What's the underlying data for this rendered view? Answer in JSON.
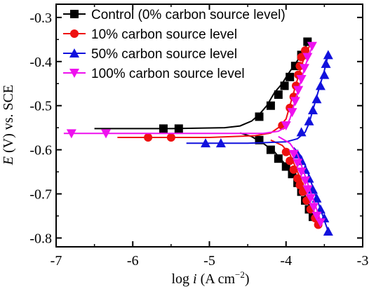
{
  "chart_data": {
    "type": "line",
    "xlabel": {
      "base": "log ",
      "italic": "i",
      "unit": " (A cm",
      "sup": "−2",
      "close": ")"
    },
    "ylabel": {
      "italic": "E",
      "rest": " (V) vs. SCE"
    },
    "xlim": [
      -7,
      -3
    ],
    "ylim": [
      -0.82,
      -0.27
    ],
    "xticks": [
      -7,
      -6,
      -5,
      -4,
      -3
    ],
    "xtick_labels": [
      "-7",
      "-6",
      "-5",
      "-4",
      "-3"
    ],
    "yticks": [
      -0.8,
      -0.7,
      -0.6,
      -0.5,
      -0.4,
      -0.3
    ],
    "ytick_labels": [
      "-0.8",
      "-0.7",
      "-0.6",
      "-0.5",
      "-0.4",
      "-0.3"
    ],
    "legend_position": "top-right",
    "series": [
      {
        "name": "Control (0% carbon source level)",
        "color": "#000000",
        "marker": "square",
        "line": [
          [
            -6.5,
            -0.552
          ],
          [
            -5.5,
            -0.552
          ],
          [
            -4.8,
            -0.55
          ],
          [
            -4.6,
            -0.546
          ],
          [
            -4.45,
            -0.535
          ],
          [
            -4.35,
            -0.52
          ],
          [
            -4.25,
            -0.5
          ],
          [
            -4.15,
            -0.47
          ],
          [
            -4.05,
            -0.45
          ],
          [
            -3.98,
            -0.43
          ],
          [
            -3.9,
            -0.41
          ],
          [
            -3.8,
            -0.385
          ],
          [
            -3.7,
            -0.352
          ],
          [
            null,
            null
          ],
          [
            -4.6,
            -0.562
          ],
          [
            -4.45,
            -0.57
          ],
          [
            -4.3,
            -0.585
          ],
          [
            -4.15,
            -0.605
          ],
          [
            -4.05,
            -0.625
          ],
          [
            -3.95,
            -0.645
          ],
          [
            -3.85,
            -0.665
          ],
          [
            -3.8,
            -0.685
          ],
          [
            -3.75,
            -0.705
          ],
          [
            -3.7,
            -0.725
          ],
          [
            -3.65,
            -0.745
          ],
          [
            -3.6,
            -0.765
          ]
        ],
        "points": [
          [
            -5.6,
            -0.552
          ],
          [
            -5.4,
            -0.552
          ],
          [
            -4.35,
            -0.525
          ],
          [
            -4.2,
            -0.5
          ],
          [
            -4.1,
            -0.475
          ],
          [
            -4.02,
            -0.455
          ],
          [
            -3.95,
            -0.435
          ],
          [
            -3.88,
            -0.41
          ],
          [
            -3.8,
            -0.385
          ],
          [
            -3.72,
            -0.355
          ],
          [
            -4.35,
            -0.578
          ],
          [
            -4.2,
            -0.6
          ],
          [
            -4.1,
            -0.62
          ],
          [
            -4.0,
            -0.638
          ],
          [
            -3.92,
            -0.655
          ],
          [
            -3.85,
            -0.675
          ],
          [
            -3.8,
            -0.695
          ],
          [
            -3.75,
            -0.715
          ],
          [
            -3.7,
            -0.735
          ],
          [
            -3.65,
            -0.752
          ]
        ]
      },
      {
        "name": "10% carbon source level",
        "color": "#ee1111",
        "marker": "circle",
        "line": [
          [
            -6.2,
            -0.572
          ],
          [
            -5.0,
            -0.572
          ],
          [
            -4.4,
            -0.568
          ],
          [
            -4.2,
            -0.562
          ],
          [
            -4.1,
            -0.55
          ],
          [
            -4.0,
            -0.53
          ],
          [
            -3.95,
            -0.5
          ],
          [
            -3.9,
            -0.47
          ],
          [
            -3.85,
            -0.44
          ],
          [
            -3.8,
            -0.41
          ],
          [
            -3.75,
            -0.385
          ],
          [
            -3.68,
            -0.36
          ],
          [
            null,
            null
          ],
          [
            -4.2,
            -0.578
          ],
          [
            -4.05,
            -0.59
          ],
          [
            -3.95,
            -0.61
          ],
          [
            -3.9,
            -0.63
          ],
          [
            -3.85,
            -0.65
          ],
          [
            -3.8,
            -0.67
          ],
          [
            -3.75,
            -0.695
          ],
          [
            -3.7,
            -0.715
          ],
          [
            -3.65,
            -0.735
          ],
          [
            -3.6,
            -0.755
          ],
          [
            -3.55,
            -0.775
          ]
        ],
        "points": [
          [
            -5.8,
            -0.572
          ],
          [
            -5.5,
            -0.572
          ],
          [
            -4.05,
            -0.545
          ],
          [
            -3.95,
            -0.505
          ],
          [
            -3.9,
            -0.48
          ],
          [
            -3.87,
            -0.455
          ],
          [
            -3.84,
            -0.43
          ],
          [
            -3.82,
            -0.41
          ],
          [
            -3.8,
            -0.39
          ],
          [
            -3.75,
            -0.375
          ],
          [
            -4.0,
            -0.605
          ],
          [
            -3.95,
            -0.625
          ],
          [
            -3.9,
            -0.645
          ],
          [
            -3.85,
            -0.665
          ],
          [
            -3.82,
            -0.68
          ],
          [
            -3.78,
            -0.695
          ],
          [
            -3.73,
            -0.715
          ],
          [
            -3.68,
            -0.735
          ],
          [
            -3.62,
            -0.755
          ],
          [
            -3.58,
            -0.77
          ]
        ]
      },
      {
        "name": "50% carbon source level",
        "color": "#1111dd",
        "marker": "triangle-up",
        "line": [
          [
            -5.3,
            -0.585
          ],
          [
            -4.5,
            -0.585
          ],
          [
            -4.0,
            -0.582
          ],
          [
            -3.85,
            -0.575
          ],
          [
            -3.75,
            -0.56
          ],
          [
            -3.7,
            -0.54
          ],
          [
            -3.65,
            -0.51
          ],
          [
            -3.6,
            -0.48
          ],
          [
            -3.55,
            -0.45
          ],
          [
            -3.5,
            -0.42
          ],
          [
            -3.45,
            -0.385
          ],
          [
            null,
            null
          ],
          [
            -3.9,
            -0.595
          ],
          [
            -3.8,
            -0.615
          ],
          [
            -3.75,
            -0.635
          ],
          [
            -3.7,
            -0.66
          ],
          [
            -3.65,
            -0.685
          ],
          [
            -3.6,
            -0.71
          ],
          [
            -3.55,
            -0.735
          ],
          [
            -3.5,
            -0.76
          ],
          [
            -3.45,
            -0.785
          ]
        ],
        "points": [
          [
            -5.05,
            -0.585
          ],
          [
            -4.85,
            -0.585
          ],
          [
            -3.8,
            -0.56
          ],
          [
            -3.7,
            -0.535
          ],
          [
            -3.65,
            -0.51
          ],
          [
            -3.6,
            -0.485
          ],
          [
            -3.55,
            -0.455
          ],
          [
            -3.5,
            -0.43
          ],
          [
            -3.48,
            -0.405
          ],
          [
            -3.45,
            -0.385
          ],
          [
            -3.85,
            -0.61
          ],
          [
            -3.8,
            -0.625
          ],
          [
            -3.75,
            -0.645
          ],
          [
            -3.7,
            -0.665
          ],
          [
            -3.65,
            -0.69
          ],
          [
            -3.6,
            -0.71
          ],
          [
            -3.55,
            -0.735
          ],
          [
            -3.5,
            -0.755
          ],
          [
            -3.45,
            -0.785
          ]
        ]
      },
      {
        "name": "100% carbon source level",
        "color": "#ee11ee",
        "marker": "triangle-down",
        "line": [
          [
            -6.9,
            -0.563
          ],
          [
            -5.5,
            -0.563
          ],
          [
            -4.3,
            -0.563
          ],
          [
            -4.1,
            -0.558
          ],
          [
            -4.0,
            -0.548
          ],
          [
            -3.95,
            -0.53
          ],
          [
            -3.9,
            -0.5
          ],
          [
            -3.85,
            -0.47
          ],
          [
            -3.8,
            -0.44
          ],
          [
            -3.75,
            -0.41
          ],
          [
            -3.7,
            -0.385
          ],
          [
            -3.65,
            -0.362
          ],
          [
            null,
            null
          ],
          [
            -4.1,
            -0.57
          ],
          [
            -3.95,
            -0.585
          ],
          [
            -3.85,
            -0.61
          ],
          [
            -3.8,
            -0.635
          ],
          [
            -3.75,
            -0.66
          ],
          [
            -3.7,
            -0.685
          ],
          [
            -3.65,
            -0.71
          ],
          [
            -3.6,
            -0.735
          ],
          [
            -3.55,
            -0.76
          ]
        ],
        "points": [
          [
            -6.8,
            -0.563
          ],
          [
            -6.35,
            -0.563
          ],
          [
            -4.0,
            -0.545
          ],
          [
            -3.92,
            -0.515
          ],
          [
            -3.88,
            -0.49
          ],
          [
            -3.84,
            -0.465
          ],
          [
            -3.8,
            -0.44
          ],
          [
            -3.76,
            -0.415
          ],
          [
            -3.72,
            -0.39
          ],
          [
            -3.66,
            -0.365
          ],
          [
            -3.9,
            -0.61
          ],
          [
            -3.85,
            -0.63
          ],
          [
            -3.8,
            -0.65
          ],
          [
            -3.75,
            -0.67
          ],
          [
            -3.72,
            -0.69
          ],
          [
            -3.68,
            -0.71
          ],
          [
            -3.64,
            -0.73
          ],
          [
            -3.6,
            -0.75
          ],
          [
            -3.55,
            -0.765
          ]
        ]
      }
    ]
  }
}
